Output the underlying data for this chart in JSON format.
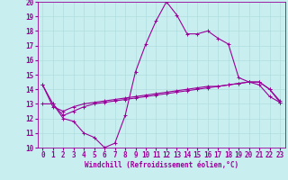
{
  "title": "",
  "xlabel": "Windchill (Refroidissement éolien,°C)",
  "ylabel": "",
  "xlim": [
    -0.5,
    23.5
  ],
  "ylim": [
    10,
    20
  ],
  "xticks": [
    0,
    1,
    2,
    3,
    4,
    5,
    6,
    7,
    8,
    9,
    10,
    11,
    12,
    13,
    14,
    15,
    16,
    17,
    18,
    19,
    20,
    21,
    22,
    23
  ],
  "yticks": [
    10,
    11,
    12,
    13,
    14,
    15,
    16,
    17,
    18,
    19,
    20
  ],
  "bg_color": "#c8eef0",
  "line_color": "#990099",
  "grid_color": "#b0dde0",
  "line1_x": [
    0,
    1,
    2,
    3,
    4,
    5,
    6,
    7,
    8,
    9,
    10,
    11,
    12,
    13,
    14,
    15,
    16,
    17,
    18,
    19,
    20,
    21,
    22,
    23
  ],
  "line1_y": [
    14.3,
    13.0,
    12.0,
    11.8,
    11.0,
    10.7,
    10.0,
    10.3,
    12.2,
    15.2,
    17.1,
    18.7,
    20.0,
    19.1,
    17.8,
    17.8,
    18.0,
    17.5,
    17.1,
    14.8,
    14.5,
    14.3,
    13.5,
    13.1
  ],
  "line2_x": [
    0,
    1,
    2,
    3,
    4,
    5,
    6,
    7,
    8,
    9,
    10,
    11,
    12,
    13,
    14,
    15,
    16,
    17,
    18,
    19,
    20,
    21,
    22,
    23
  ],
  "line2_y": [
    13.0,
    13.0,
    12.2,
    12.5,
    12.8,
    13.0,
    13.1,
    13.2,
    13.3,
    13.4,
    13.5,
    13.6,
    13.7,
    13.8,
    13.9,
    14.0,
    14.1,
    14.2,
    14.3,
    14.4,
    14.5,
    14.5,
    14.0,
    13.2
  ],
  "line3_x": [
    0,
    1,
    2,
    3,
    4,
    5,
    6,
    7,
    8,
    9,
    10,
    11,
    12,
    13,
    14,
    15,
    16,
    17,
    18,
    19,
    20,
    21,
    22,
    23
  ],
  "line3_y": [
    14.3,
    12.8,
    12.5,
    12.8,
    13.0,
    13.1,
    13.2,
    13.3,
    13.4,
    13.5,
    13.6,
    13.7,
    13.8,
    13.9,
    14.0,
    14.1,
    14.2,
    14.2,
    14.3,
    14.4,
    14.5,
    14.5,
    14.0,
    13.1
  ],
  "xlabel_fontsize": 5.5,
  "tick_fontsize": 5.5,
  "linewidth": 0.8,
  "markersize": 2.5
}
